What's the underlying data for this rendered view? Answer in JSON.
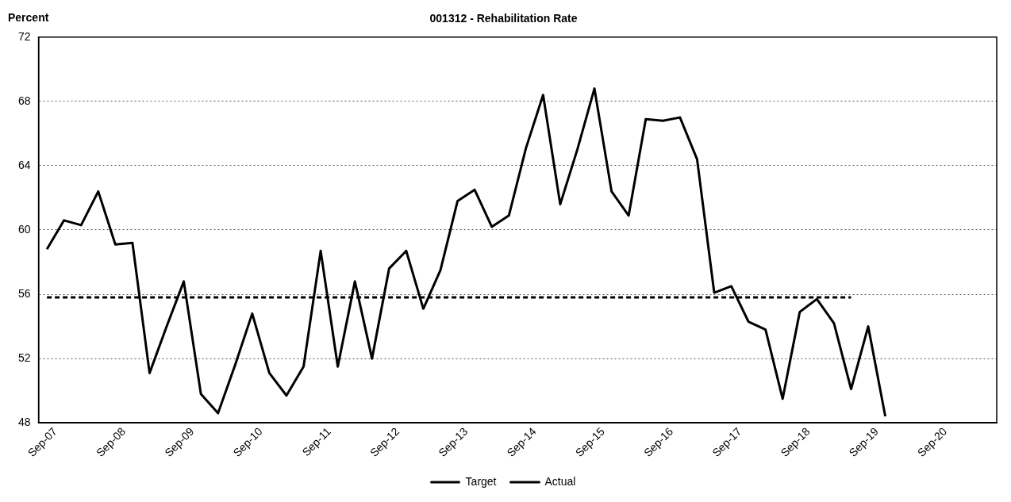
{
  "chart_data": {
    "type": "line",
    "title": "001312 - Rehabilitation Rate",
    "ylabel": "Percent",
    "x": [
      "2007-07-15",
      "2007-10-15",
      "2008-01-15",
      "2008-04-15",
      "2008-07-15",
      "2008-10-15",
      "2009-01-15",
      "2009-04-15",
      "2009-07-15",
      "2009-10-15",
      "2010-01-15",
      "2010-04-15",
      "2010-07-15",
      "2010-10-15",
      "2011-01-15",
      "2011-04-15",
      "2011-07-15",
      "2011-10-15",
      "2012-01-15",
      "2012-04-15",
      "2012-07-15",
      "2012-10-15",
      "2013-01-15",
      "2013-04-15",
      "2013-07-15",
      "2013-10-15",
      "2014-01-15",
      "2014-04-15",
      "2014-07-15",
      "2014-10-15",
      "2015-01-15",
      "2015-04-15",
      "2015-07-15",
      "2015-10-15",
      "2016-01-15",
      "2016-04-15",
      "2016-07-15",
      "2016-10-15",
      "2017-01-15",
      "2017-04-15",
      "2017-07-15",
      "2017-10-15",
      "2018-01-15",
      "2018-04-15",
      "2018-07-15",
      "2018-10-15",
      "2019-01-15",
      "2019-04-15",
      "2019-07-15",
      "2019-10-15"
    ],
    "series": [
      {
        "name": "Target",
        "color": "#000000",
        "line_style": "dashed",
        "values": [
          55.8,
          55.8,
          55.8,
          55.8,
          55.8,
          55.8,
          55.8,
          55.8,
          55.8,
          55.8,
          55.8,
          55.8,
          55.8,
          55.8,
          55.8,
          55.8,
          55.8,
          55.8,
          55.8,
          55.8,
          55.8,
          55.8,
          55.8,
          55.8,
          55.8,
          55.8,
          55.8,
          55.8,
          55.8,
          55.8,
          55.8,
          55.8,
          55.8,
          55.8,
          55.8,
          55.8,
          55.8,
          55.8,
          55.8,
          55.8,
          55.8,
          55.8,
          55.8,
          55.8,
          55.8,
          55.8,
          55.8,
          55.8,
          null,
          null
        ]
      },
      {
        "name": "Actual",
        "color": "#000000",
        "line_style": "solid",
        "values": [
          58.8,
          60.6,
          60.3,
          62.4,
          59.1,
          59.2,
          51.1,
          54.0,
          56.8,
          49.8,
          48.6,
          51.6,
          54.8,
          51.1,
          49.7,
          51.5,
          58.7,
          51.5,
          56.8,
          52.0,
          57.6,
          58.7,
          55.1,
          57.5,
          61.8,
          62.5,
          60.2,
          60.9,
          65.1,
          68.4,
          61.6,
          65.0,
          68.8,
          62.4,
          60.9,
          66.9,
          66.8,
          67.0,
          64.4,
          56.1,
          56.5,
          54.3,
          53.8,
          49.5,
          54.9,
          55.7,
          54.2,
          50.1,
          54.0,
          48.4
        ]
      }
    ],
    "xlim": [
      "2007-06",
      "2021-06"
    ],
    "xticks": [
      {
        "value": "2007-09",
        "label": "Sep-07"
      },
      {
        "value": "2008-09",
        "label": "Sep-08"
      },
      {
        "value": "2009-09",
        "label": "Sep-09"
      },
      {
        "value": "2010-09",
        "label": "Sep-10"
      },
      {
        "value": "2011-09",
        "label": "Sep-11"
      },
      {
        "value": "2012-09",
        "label": "Sep-12"
      },
      {
        "value": "2013-09",
        "label": "Sep-13"
      },
      {
        "value": "2014-09",
        "label": "Sep-14"
      },
      {
        "value": "2015-09",
        "label": "Sep-15"
      },
      {
        "value": "2016-09",
        "label": "Sep-16"
      },
      {
        "value": "2017-09",
        "label": "Sep-17"
      },
      {
        "value": "2018-09",
        "label": "Sep-18"
      },
      {
        "value": "2019-09",
        "label": "Sep-19"
      },
      {
        "value": "2020-09",
        "label": "Sep-20"
      }
    ],
    "ylim": [
      48,
      72
    ],
    "yticks": [
      48,
      52,
      56,
      60,
      64,
      68,
      72
    ],
    "grid": "y",
    "legend": "bottom",
    "marker": "none"
  }
}
